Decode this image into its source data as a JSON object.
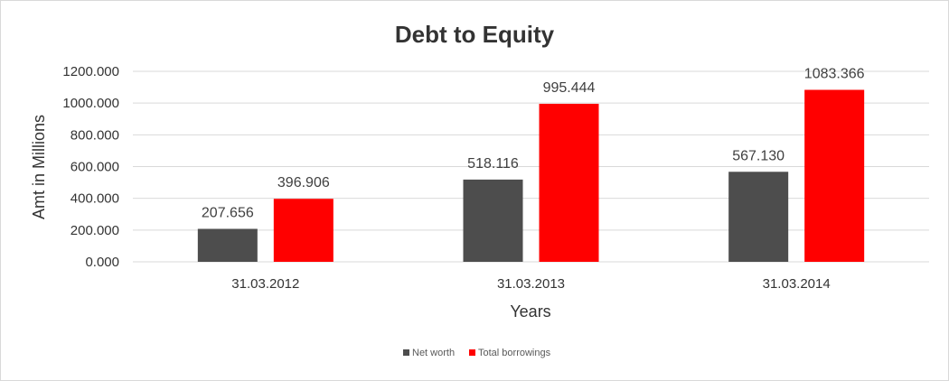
{
  "chart_data": {
    "type": "bar",
    "title": "Debt to Equity",
    "xlabel": "Years",
    "ylabel": "Amt in Millions",
    "categories": [
      "31.03.2012",
      "31.03.2013",
      "31.03.2014"
    ],
    "series": [
      {
        "name": "Net worth",
        "color": "#4d4d4d",
        "values": [
          207.656,
          518.116,
          567.13
        ],
        "labels": [
          "207.656",
          "518.116",
          "567.130"
        ]
      },
      {
        "name": "Total borrowings",
        "color": "#ff0000",
        "values": [
          396.906,
          995.444,
          1083.366
        ],
        "labels": [
          "396.906",
          "995.444",
          "1083.366"
        ]
      }
    ],
    "ylim": [
      0,
      1200
    ],
    "yticks": [
      0,
      200,
      400,
      600,
      800,
      1000,
      1200
    ],
    "ytick_labels": [
      "0.000",
      "200.000",
      "400.000",
      "600.000",
      "800.000",
      "1000.000",
      "1200.000"
    ],
    "grid": true,
    "legend_position": "bottom"
  }
}
